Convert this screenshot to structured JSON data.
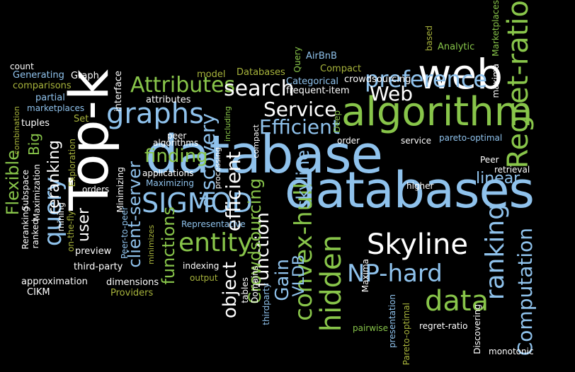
{
  "word_cloud": {
    "colors": {
      "background": "#000000",
      "white": "#ffffff",
      "blue": "#8fc2ec",
      "green": "#88c54a",
      "olive": "#a8b43c"
    },
    "words": [
      "database",
      "databases",
      "algorithm",
      "Top-k",
      "web",
      "Regret-ratio",
      "graphs",
      "query",
      "SIGMOD",
      "entity",
      "hidden",
      "convex-hull",
      "Skyline",
      "ranking",
      "NP-hard",
      "data",
      "Computation",
      "preference",
      "Attributes",
      "search",
      "Service",
      "Efficient",
      "Web",
      "discovery",
      "finding",
      "efficient",
      "function",
      "Crowdsourcing",
      "skyline",
      "VLDB",
      "Gain",
      "object",
      "functions",
      "client-server",
      "user",
      "reranking",
      "Flexible",
      "Big",
      "linear",
      "count",
      "Generating",
      "comparisons",
      "partial",
      "marketplaces",
      "tuples",
      "Graph",
      "interface",
      "attributes",
      "peer",
      "algorithms",
      "applications",
      "Maximizing",
      "orders",
      "Minimizing",
      "mining",
      "on-the-fly",
      "Reranking",
      "ranked",
      "Subspace",
      "Maximization",
      "Exploration",
      "combination",
      "Set",
      "preview",
      "third-party",
      "Peer-to-peer",
      "approximation",
      "CIKM",
      "dimensions",
      "Providers",
      "minimizes",
      "Representative",
      "indexing",
      "output",
      "tables",
      "Domains",
      "thirdparty",
      "processing",
      "including",
      "compact",
      "Deep",
      "Query",
      "Databases",
      "AirBnB",
      "Compact",
      "Categorical",
      "frequent-item",
      "crowdsourcing",
      "model",
      "order",
      "service",
      "pareto-optimal",
      "Peer",
      "retrieval",
      "higher",
      "Maxima",
      "presentation",
      "Pareto-optimal",
      "regret-ratio",
      "pairwise",
      "Discovering",
      "monotonic",
      "maxima",
      "Marketplaces",
      "Analytic",
      "based"
    ]
  }
}
